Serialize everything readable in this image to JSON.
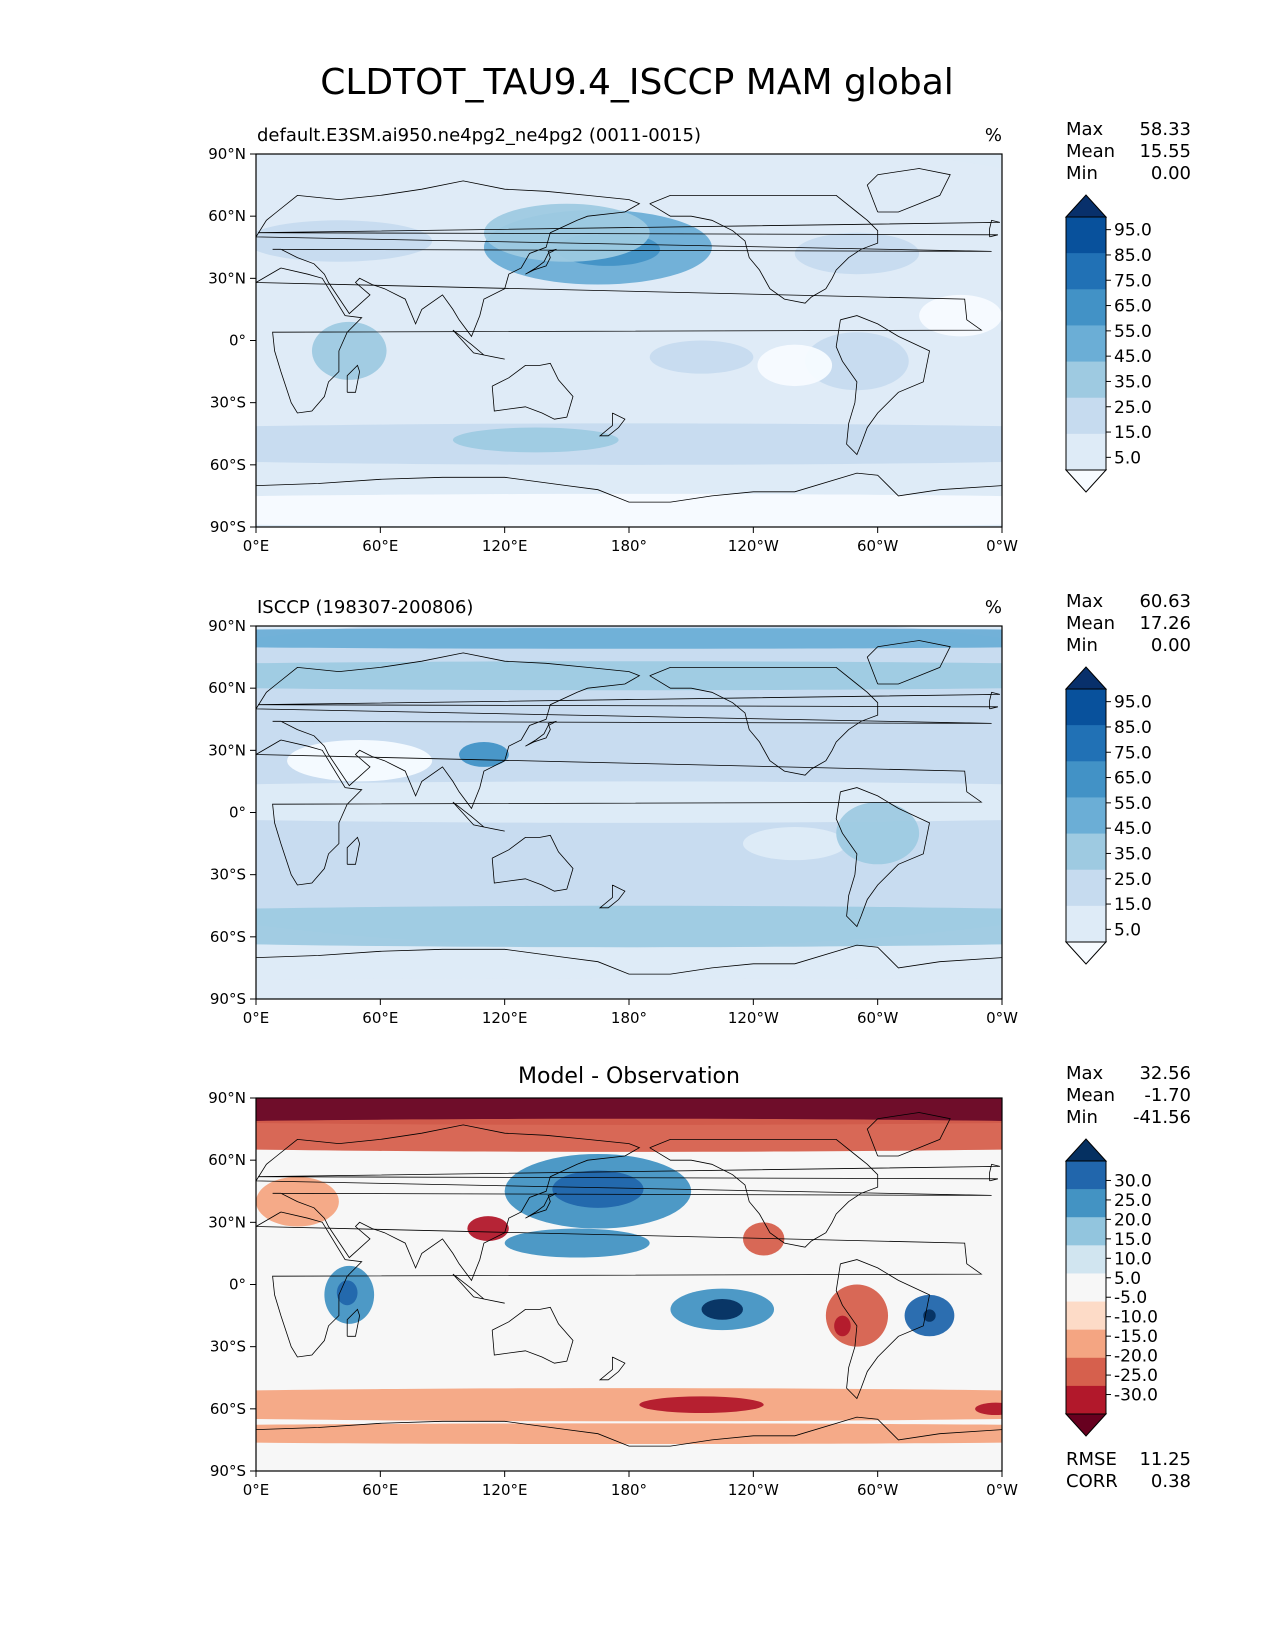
{
  "figure_title": "CLDTOT_TAU9.4_ISCCP MAM global",
  "colors": {
    "seq": [
      "#f7fbff",
      "#deebf7",
      "#c6dbef",
      "#9ecae1",
      "#6baed6",
      "#4292c6",
      "#2171b5",
      "#08519c",
      "#08306b"
    ],
    "div": [
      "#67001f",
      "#b2182b",
      "#d6604d",
      "#f4a582",
      "#fddbc7",
      "#f7f7f7",
      "#d1e5f0",
      "#92c5de",
      "#4393c3",
      "#2166ac",
      "#053061"
    ],
    "coast": "#000000"
  },
  "chart_data": [
    {
      "type": "heatmap",
      "title_left": "default.E3SM.ai950.ne4pg2_ne4pg2 (0011-0015)",
      "units": "%",
      "stats": [
        {
          "label": "Max",
          "value": "58.33"
        },
        {
          "label": "Mean",
          "value": "15.55"
        },
        {
          "label": "Min",
          "value": "0.00"
        }
      ],
      "colorbar_ticks": [
        "95.0",
        "85.0",
        "75.0",
        "65.0",
        "55.0",
        "45.0",
        "35.0",
        "25.0",
        "15.0",
        "5.0"
      ],
      "xticks": [
        "0°E",
        "60°E",
        "120°E",
        "180°",
        "120°W",
        "60°W",
        "0°W"
      ],
      "yticks": [
        "90°N",
        "60°N",
        "30°N",
        "0°",
        "30°S",
        "60°S",
        "90°S"
      ],
      "xlim": [
        0,
        360
      ],
      "ylim": [
        -90,
        90
      ],
      "field": [
        {
          "lon": 140,
          "lat": 20,
          "rx": 360,
          "ry": 80,
          "level": 1
        },
        {
          "lon": 165,
          "lat": 45,
          "rx": 55,
          "ry": 18,
          "level": 4
        },
        {
          "lon": 170,
          "lat": 44,
          "rx": 25,
          "ry": 8,
          "level": 5
        },
        {
          "lon": 150,
          "lat": 52,
          "rx": 40,
          "ry": 14,
          "level": 3
        },
        {
          "lon": 290,
          "lat": 42,
          "rx": 30,
          "ry": 10,
          "level": 2
        },
        {
          "lon": 40,
          "lat": 48,
          "rx": 45,
          "ry": 10,
          "level": 2
        },
        {
          "lon": 180,
          "lat": -50,
          "rx": 360,
          "ry": 10,
          "level": 2
        },
        {
          "lon": 135,
          "lat": -48,
          "rx": 40,
          "ry": 6,
          "level": 3
        },
        {
          "lon": 45,
          "lat": -5,
          "rx": 18,
          "ry": 14,
          "level": 3
        },
        {
          "lon": 215,
          "lat": -8,
          "rx": 25,
          "ry": 8,
          "level": 2
        },
        {
          "lon": 290,
          "lat": -10,
          "rx": 25,
          "ry": 14,
          "level": 2
        },
        {
          "lon": 260,
          "lat": -12,
          "rx": 18,
          "ry": 10,
          "level": 0
        },
        {
          "lon": 340,
          "lat": 12,
          "rx": 20,
          "ry": 10,
          "level": 0
        },
        {
          "lon": 180,
          "lat": -82,
          "rx": 360,
          "ry": 8,
          "level": 0
        }
      ]
    },
    {
      "type": "heatmap",
      "title_left": "ISCCP (198307-200806)",
      "units": "%",
      "stats": [
        {
          "label": "Max",
          "value": "60.63"
        },
        {
          "label": "Mean",
          "value": "17.26"
        },
        {
          "label": "Min",
          "value": "0.00"
        }
      ],
      "colorbar_ticks": [
        "95.0",
        "85.0",
        "75.0",
        "65.0",
        "55.0",
        "45.0",
        "35.0",
        "25.0",
        "15.0",
        "5.0"
      ],
      "xticks": [
        "0°E",
        "60°E",
        "120°E",
        "180°",
        "120°W",
        "60°W",
        "0°W"
      ],
      "yticks": [
        "90°N",
        "60°N",
        "30°N",
        "0°",
        "30°S",
        "60°S",
        "90°S"
      ],
      "xlim": [
        0,
        360
      ],
      "ylim": [
        -90,
        90
      ],
      "field": [
        {
          "lon": 180,
          "lat": 15,
          "rx": 360,
          "ry": 80,
          "level": 2
        },
        {
          "lon": 180,
          "lat": 84,
          "rx": 360,
          "ry": 5,
          "level": 4
        },
        {
          "lon": 180,
          "lat": 66,
          "rx": 360,
          "ry": 7,
          "level": 3
        },
        {
          "lon": 110,
          "lat": 28,
          "rx": 12,
          "ry": 6,
          "level": 5
        },
        {
          "lon": 180,
          "lat": -55,
          "rx": 360,
          "ry": 10,
          "level": 3
        },
        {
          "lon": 180,
          "lat": 5,
          "rx": 360,
          "ry": 10,
          "level": 1
        },
        {
          "lon": 260,
          "lat": -15,
          "rx": 25,
          "ry": 8,
          "level": 1
        },
        {
          "lon": 50,
          "lat": 25,
          "rx": 35,
          "ry": 10,
          "level": 0
        },
        {
          "lon": 300,
          "lat": -10,
          "rx": 20,
          "ry": 15,
          "level": 3
        },
        {
          "lon": 180,
          "lat": -85,
          "rx": 360,
          "ry": 5,
          "level": 1
        }
      ]
    },
    {
      "type": "heatmap",
      "title_center": "Model - Observation",
      "stats": [
        {
          "label": "Max",
          "value": "32.56"
        },
        {
          "label": "Mean",
          "value": "-1.70"
        },
        {
          "label": "Min",
          "value": "-41.56"
        }
      ],
      "bottom_stats": [
        {
          "label": "RMSE",
          "value": "11.25"
        },
        {
          "label": "CORR",
          "value": "0.38"
        }
      ],
      "colorbar_ticks": [
        "30.0",
        "25.0",
        "20.0",
        "15.0",
        "10.0",
        "5.0",
        "-5.0",
        "-10.0",
        "-15.0",
        "-20.0",
        "-25.0",
        "-30.0"
      ],
      "xticks": [
        "0°E",
        "60°E",
        "120°E",
        "180°",
        "120°W",
        "60°W",
        "0°W"
      ],
      "yticks": [
        "90°N",
        "60°N",
        "30°N",
        "0°",
        "30°S",
        "60°S",
        "90°S"
      ],
      "xlim": [
        0,
        360
      ],
      "ylim": [
        -90,
        90
      ],
      "field": [
        {
          "lon": 180,
          "lat": 84,
          "rx": 360,
          "ry": 7,
          "level": 0
        },
        {
          "lon": 180,
          "lat": 72,
          "rx": 360,
          "ry": 8,
          "level": 2
        },
        {
          "lon": 20,
          "lat": 40,
          "rx": 20,
          "ry": 12,
          "level": 3
        },
        {
          "lon": 165,
          "lat": 45,
          "rx": 45,
          "ry": 18,
          "level": 8
        },
        {
          "lon": 165,
          "lat": 46,
          "rx": 22,
          "ry": 9,
          "level": 9
        },
        {
          "lon": 155,
          "lat": 20,
          "rx": 35,
          "ry": 7,
          "level": 8
        },
        {
          "lon": 112,
          "lat": 27,
          "rx": 10,
          "ry": 6,
          "level": 1
        },
        {
          "lon": 45,
          "lat": -5,
          "rx": 12,
          "ry": 14,
          "level": 8
        },
        {
          "lon": 44,
          "lat": -4,
          "rx": 5,
          "ry": 6,
          "level": 9
        },
        {
          "lon": 225,
          "lat": -12,
          "rx": 25,
          "ry": 10,
          "level": 8
        },
        {
          "lon": 225,
          "lat": -12,
          "rx": 10,
          "ry": 5,
          "level": 10
        },
        {
          "lon": 290,
          "lat": -15,
          "rx": 15,
          "ry": 15,
          "level": 2
        },
        {
          "lon": 283,
          "lat": -20,
          "rx": 4,
          "ry": 5,
          "level": 1
        },
        {
          "lon": 325,
          "lat": -15,
          "rx": 12,
          "ry": 10,
          "level": 9
        },
        {
          "lon": 325,
          "lat": -15,
          "rx": 3,
          "ry": 3,
          "level": 10
        },
        {
          "lon": 245,
          "lat": 22,
          "rx": 10,
          "ry": 8,
          "level": 2
        },
        {
          "lon": 180,
          "lat": -58,
          "rx": 360,
          "ry": 8,
          "level": 3
        },
        {
          "lon": 215,
          "lat": -58,
          "rx": 30,
          "ry": 4,
          "level": 1
        },
        {
          "lon": 357,
          "lat": -60,
          "rx": 10,
          "ry": 3,
          "level": 1
        },
        {
          "lon": 180,
          "lat": -72,
          "rx": 360,
          "ry": 5,
          "level": 3
        }
      ]
    }
  ]
}
